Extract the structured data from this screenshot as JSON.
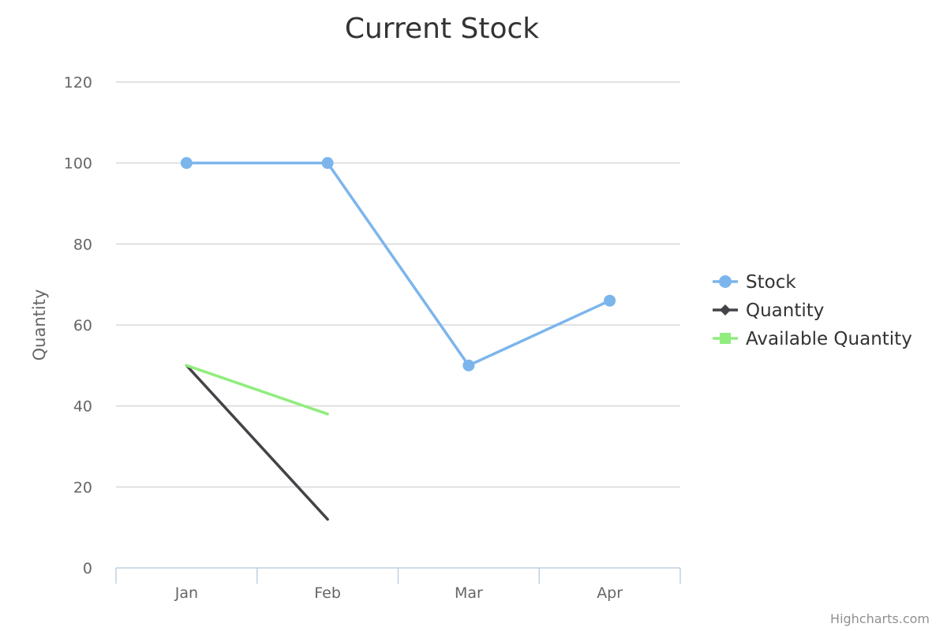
{
  "chart_data": {
    "type": "line",
    "title": "Current Stock",
    "xlabel": "",
    "ylabel": "Quantity",
    "categories": [
      "Jan",
      "Feb",
      "Mar",
      "Apr"
    ],
    "ylim": [
      0,
      120
    ],
    "yticks": [
      0,
      20,
      40,
      60,
      80,
      100,
      120
    ],
    "grid": true,
    "legend_position": "right",
    "series": [
      {
        "name": "Stock",
        "values": [
          100,
          100,
          50,
          66
        ],
        "color": "#7cb5ec",
        "marker": "circle"
      },
      {
        "name": "Quantity",
        "values": [
          50,
          12,
          null,
          null
        ],
        "color": "#434348",
        "marker": "diamond"
      },
      {
        "name": "Available Quantity",
        "values": [
          50,
          38,
          null,
          null
        ],
        "color": "#90ed7d",
        "marker": "square"
      }
    ]
  },
  "credits": "Highcharts.com"
}
